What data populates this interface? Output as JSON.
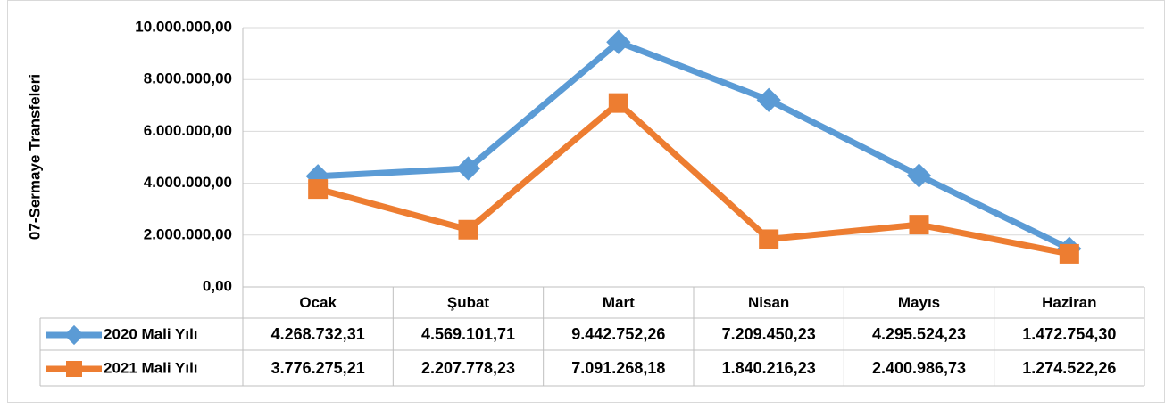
{
  "chart_data": {
    "type": "line",
    "y_label": "07-Sermaye Transfeleri",
    "categories": [
      "Ocak",
      "Şubat",
      "Mart",
      "Nisan",
      "Mayıs",
      "Haziran"
    ],
    "series": [
      {
        "name": "2020 Mali Yılı",
        "color": "#5b9bd5",
        "marker": "diamond",
        "values": [
          4268732.31,
          4569101.71,
          9442752.26,
          7209450.23,
          4295524.23,
          1472754.3
        ],
        "value_labels": [
          "4.268.732,31",
          "4.569.101,71",
          "9.442.752,26",
          "7.209.450,23",
          "4.295.524,23",
          "1.472.754,30"
        ]
      },
      {
        "name": "2021 Mali Yılı",
        "color": "#ed7d31",
        "marker": "square",
        "values": [
          3776275.21,
          2207778.23,
          7091268.18,
          1840216.23,
          2400986.73,
          1274522.26
        ],
        "value_labels": [
          "3.776.275,21",
          "2.207.778,23",
          "7.091.268,18",
          "1.840.216,23",
          "2.400.986,73",
          "1.274.522,26"
        ]
      }
    ],
    "ylim": [
      0,
      10000000
    ],
    "yticks": [
      {
        "value": 0,
        "label": "0,00"
      },
      {
        "value": 2000000,
        "label": "2.000.000,00"
      },
      {
        "value": 4000000,
        "label": "4.000.000,00"
      },
      {
        "value": 6000000,
        "label": "6.000.000,00"
      },
      {
        "value": 8000000,
        "label": "8.000.000,00"
      },
      {
        "value": 10000000,
        "label": "10.000.000,00"
      }
    ],
    "grid": true
  }
}
